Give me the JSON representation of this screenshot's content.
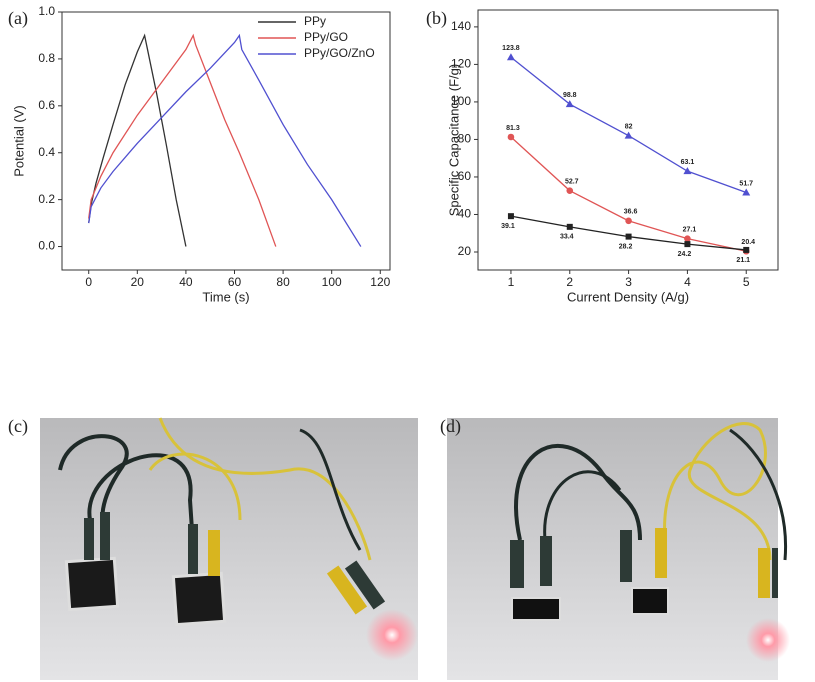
{
  "chart_data": [
    {
      "type": "line",
      "panel_label": "(a)",
      "x_label": "Time (s)",
      "y_label": "Potential (V)",
      "xlim": [
        -11,
        124
      ],
      "ylim": [
        -0.1,
        1.0
      ],
      "xticks": [
        0,
        20,
        40,
        60,
        80,
        100,
        120
      ],
      "yticks": [
        {
          "value": 0,
          "label": "0.0"
        },
        0.2,
        0.4,
        0.6,
        0.8,
        {
          "value": 1,
          "label": "1.0"
        }
      ],
      "legend": "upper right",
      "series": [
        {
          "name": "PPy",
          "color": "#333333",
          "x": [
            0,
            1,
            3,
            6,
            10,
            15,
            20,
            23,
            24,
            28,
            32,
            36,
            40
          ],
          "values": [
            0.1,
            0.18,
            0.27,
            0.38,
            0.52,
            0.69,
            0.83,
            0.9,
            0.85,
            0.65,
            0.43,
            0.2,
            0
          ]
        },
        {
          "name": "PPy/GO",
          "color": "#e05555",
          "x": [
            0,
            1,
            5,
            10,
            20,
            30,
            40,
            43,
            44,
            50,
            56,
            62,
            70,
            77
          ],
          "values": [
            0.12,
            0.2,
            0.3,
            0.4,
            0.56,
            0.7,
            0.84,
            0.9,
            0.86,
            0.7,
            0.54,
            0.4,
            0.2,
            0
          ]
        },
        {
          "name": "PPy/GO/ZnO",
          "color": "#5050d0",
          "x": [
            0,
            1,
            5,
            10,
            20,
            30,
            40,
            50,
            60,
            62,
            63,
            70,
            80,
            90,
            100,
            112
          ],
          "values": [
            0.1,
            0.17,
            0.25,
            0.32,
            0.44,
            0.55,
            0.66,
            0.76,
            0.87,
            0.9,
            0.84,
            0.71,
            0.52,
            0.35,
            0.2,
            0
          ]
        }
      ]
    },
    {
      "type": "line",
      "panel_label": "(b)",
      "x_label": "Current Density (A/g)",
      "y_label": "Specific Capacitance (F/g)",
      "xlim": [
        0.44,
        5.54
      ],
      "ylim": [
        10.4,
        149
      ],
      "x": [
        1,
        2,
        3,
        4,
        5
      ],
      "xticks": [
        1,
        2,
        3,
        4,
        5
      ],
      "yticks": [
        20,
        40,
        60,
        80,
        100,
        120,
        140
      ],
      "series": [
        {
          "color": "#5050d0",
          "marker": "triangle",
          "values": [
            123.8,
            98.8,
            82,
            63.1,
            51.7
          ]
        },
        {
          "color": "#e05555",
          "marker": "circle",
          "values": [
            81.3,
            52.7,
            36.6,
            27.1,
            20.4
          ]
        },
        {
          "color": "#222222",
          "marker": "square",
          "values": [
            39.1,
            33.4,
            28.2,
            24.2,
            21.1
          ]
        }
      ]
    }
  ],
  "photos": [
    {
      "label": "(c)"
    },
    {
      "label": "(d)"
    }
  ]
}
